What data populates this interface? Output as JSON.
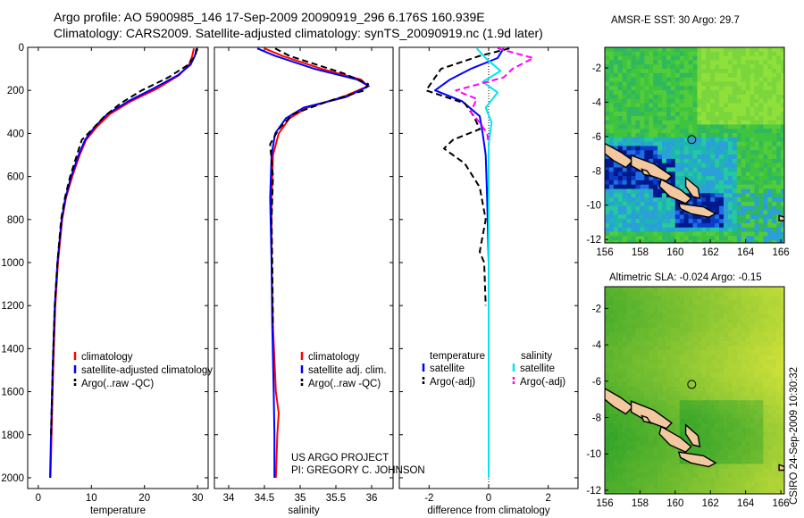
{
  "header": {
    "line1": "Argo profile: AO 5900985_146 17-Sep-2009 20090919_296 6.176S 160.939E",
    "line2": "Climatology: CARS2009. Satellite-adjusted climatology: synTS_20090919.nc (1.9d later)"
  },
  "credit": {
    "line1": "US ARGO PROJECT",
    "line2": "PI: GREGORY C. JOHNSON"
  },
  "side_label": "CSIRO 24-Sep-2009 10:30:32",
  "colors": {
    "climatology": "#ff0000",
    "satellite": "#0000ff",
    "argo": "#000000",
    "sal_satellite": "#00e5ee",
    "sal_argo": "#ff00ff"
  },
  "chart_data": [
    {
      "type": "line",
      "xlabel": "temperature",
      "xlim": [
        -2,
        32
      ],
      "ylim": [
        2050,
        0
      ],
      "xticks": [
        0,
        10,
        20,
        30
      ],
      "yticks": [
        0,
        200,
        400,
        600,
        800,
        1000,
        1200,
        1400,
        1600,
        1800,
        2000
      ],
      "legend": {
        "placement": "lower-right",
        "entries": [
          "climatology",
          "satellite-adjusted climatology",
          "Argo(..raw -QC)"
        ]
      },
      "series": [
        {
          "name": "climatology",
          "color": "#ff0000",
          "x": [
            29.3,
            29.0,
            28.4,
            26.5,
            22.5,
            17.5,
            13.5,
            11.0,
            9.0,
            7.8,
            6.4,
            5.2,
            4.5,
            3.7,
            3.2,
            2.8,
            2.5,
            2.3
          ],
          "y": [
            5,
            40,
            80,
            130,
            190,
            250,
            310,
            370,
            430,
            500,
            600,
            700,
            800,
            1000,
            1200,
            1500,
            1800,
            2000
          ]
        },
        {
          "name": "satellite-adjusted climatology",
          "color": "#0000ff",
          "x": [
            29.8,
            29.5,
            28.7,
            26.3,
            21.8,
            17.0,
            13.0,
            10.6,
            8.8,
            7.6,
            6.2,
            5.1,
            4.4,
            3.6,
            3.1,
            2.7,
            2.4,
            2.2
          ],
          "y": [
            5,
            40,
            80,
            130,
            190,
            250,
            310,
            370,
            430,
            500,
            600,
            700,
            800,
            1000,
            1200,
            1500,
            1800,
            2000
          ]
        },
        {
          "name": "Argo(..raw -QC)",
          "color": "#000000",
          "x": [
            29.9,
            29.6,
            28.0,
            24.5,
            19.5,
            15.5,
            12.5,
            10.2,
            8.2,
            7.8,
            6.0,
            5.0,
            4.3,
            3.6,
            3.1,
            2.7,
            2.4
          ],
          "y": [
            5,
            40,
            85,
            140,
            200,
            260,
            320,
            380,
            430,
            460,
            600,
            700,
            800,
            1000,
            1200,
            1500,
            1800
          ]
        }
      ]
    },
    {
      "type": "line",
      "xlabel": "salinity",
      "xlim": [
        33.8,
        36.3
      ],
      "ylim": [
        2050,
        0
      ],
      "xticks": [
        34,
        34.5,
        35,
        35.5,
        36
      ],
      "xticklabels": [
        "34",
        "34.5",
        "35",
        "35.5",
        "36"
      ],
      "legend": {
        "placement": "lower-right",
        "entries": [
          "climatology",
          "satellite adj. clim.",
          "Argo(..raw -QC)"
        ]
      },
      "series": [
        {
          "name": "climatology",
          "color": "#ff0000",
          "x": [
            34.5,
            34.75,
            35.3,
            35.85,
            35.95,
            35.6,
            35.1,
            34.85,
            34.7,
            34.62,
            34.6,
            34.6,
            34.62,
            34.66,
            34.7,
            34.68,
            34.66
          ],
          "y": [
            5,
            40,
            100,
            150,
            180,
            230,
            280,
            330,
            400,
            500,
            700,
            1000,
            1300,
            1600,
            1700,
            1800,
            2000
          ]
        },
        {
          "name": "satellite adj. clim.",
          "color": "#0000ff",
          "x": [
            34.4,
            34.65,
            35.2,
            35.8,
            35.96,
            35.65,
            35.05,
            34.8,
            34.65,
            34.6,
            34.58,
            34.6,
            34.61,
            34.63,
            34.64,
            34.64
          ],
          "y": [
            5,
            40,
            100,
            150,
            180,
            230,
            280,
            330,
            400,
            500,
            700,
            1000,
            1300,
            1600,
            1800,
            2000
          ]
        },
        {
          "name": "Argo(..raw -QC)",
          "color": "#000000",
          "x": [
            34.65,
            34.85,
            35.6,
            35.95,
            35.9,
            35.4,
            34.9,
            34.7,
            34.58,
            34.62,
            34.6,
            34.61,
            34.62
          ],
          "y": [
            5,
            40,
            120,
            170,
            200,
            250,
            310,
            380,
            450,
            600,
            800,
            1000,
            1300
          ]
        }
      ]
    },
    {
      "type": "line",
      "xlabel": "difference from climatology",
      "xlim": [
        -3,
        3
      ],
      "ylim": [
        2050,
        0
      ],
      "xticks": [
        -2,
        0,
        2
      ],
      "xticklabels": [
        "-2",
        "0",
        "2"
      ],
      "legend": {
        "placement": "lower-center",
        "titles": [
          "temperature",
          "salinity"
        ],
        "entries": [
          "satellite",
          "Argo(-adj)",
          "satellite",
          "Argo(-adj)"
        ]
      },
      "series": [
        {
          "name": "temperature satellite",
          "color": "#0000ff",
          "x": [
            0.5,
            0.3,
            -0.6,
            -1.3,
            -1.8,
            -0.9,
            -0.3,
            -0.2,
            -0.1,
            -0.05,
            0.0,
            0.0,
            0.0,
            0.0
          ],
          "y": [
            5,
            50,
            100,
            150,
            200,
            250,
            320,
            400,
            500,
            700,
            1000,
            1300,
            1600,
            2000
          ]
        },
        {
          "name": "temperature Argo(-adj)",
          "color": "#000000",
          "x": [
            0.7,
            -0.3,
            -1.6,
            -2.1,
            -0.8,
            -0.5,
            -0.3,
            -1.2,
            -1.5,
            -0.8,
            -0.3,
            -0.1,
            -0.3,
            -0.15,
            -0.1
          ],
          "y": [
            5,
            40,
            100,
            200,
            260,
            320,
            380,
            430,
            470,
            540,
            650,
            800,
            950,
            1000,
            1200
          ]
        },
        {
          "name": "salinity satellite",
          "color": "#00e5ee",
          "x": [
            -0.4,
            -0.1,
            0.4,
            -0.2,
            0.3,
            -0.1,
            0.1,
            0.0,
            0.0,
            0.0,
            0.0,
            0.0,
            0.0
          ],
          "y": [
            5,
            50,
            110,
            160,
            210,
            280,
            350,
            450,
            600,
            900,
            1300,
            1700,
            2000
          ]
        },
        {
          "name": "salinity Argo(-adj)",
          "color": "#ff00ff",
          "x": [
            0.3,
            1.5,
            0.8,
            0.5,
            -1.1,
            -0.4,
            -0.6,
            -0.3,
            -0.05,
            0.0
          ],
          "y": [
            5,
            50,
            100,
            140,
            200,
            240,
            300,
            350,
            400,
            450
          ]
        }
      ]
    },
    {
      "type": "heatmap",
      "title": "AMSR-E SST: 30 Argo: 29.7",
      "xlim": [
        156,
        166.2
      ],
      "ylim": [
        -12.2,
        -0.8
      ],
      "xticks": [
        156,
        158,
        160,
        162,
        164,
        166
      ],
      "yticks": [
        -2,
        -4,
        -6,
        -8,
        -10,
        -12
      ],
      "marker": {
        "lon": 160.939,
        "lat": -6.176
      }
    },
    {
      "type": "heatmap",
      "title": "Altimetric SLA: -0.024 Argo: -0.15",
      "xlim": [
        156,
        166.2
      ],
      "ylim": [
        -12.2,
        -0.8
      ],
      "xticks": [
        156,
        158,
        160,
        162,
        164,
        166
      ],
      "yticks": [
        -2,
        -4,
        -6,
        -8,
        -10,
        -12
      ],
      "marker": {
        "lon": 160.939,
        "lat": -6.176
      }
    }
  ]
}
